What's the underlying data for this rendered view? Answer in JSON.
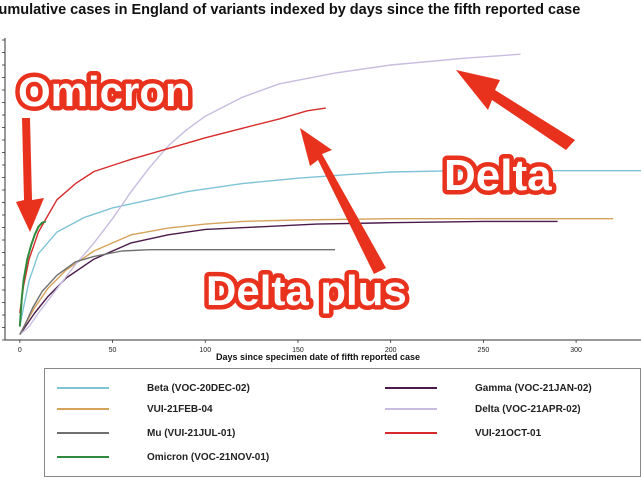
{
  "chart_data": {
    "type": "line",
    "title": "Cumulative cases in England of variants indexed by days since the fifth reported case",
    "xlabel": "Days since specimen date of fifth reported case",
    "ylabel": "",
    "xlim": [
      -8,
      335
    ],
    "x_ticks": [
      0,
      50,
      100,
      150,
      200,
      250,
      300
    ],
    "grid": false,
    "legend_position": "bottom",
    "series": [
      {
        "name": "Beta (VOC-20DEC-02)",
        "color": "#7fc3d6",
        "x": [
          0,
          2,
          5,
          10,
          20,
          35,
          50,
          70,
          90,
          120,
          150,
          180,
          200,
          230,
          260,
          300,
          335
        ],
        "y": [
          0.05,
          0.12,
          0.22,
          0.32,
          0.4,
          0.455,
          0.49,
          0.52,
          0.55,
          0.58,
          0.6,
          0.615,
          0.623,
          0.627,
          0.628,
          0.628,
          0.628
        ]
      },
      {
        "name": "Gamma (VOC-21JAN-02)",
        "color": "#4b1a4b",
        "x": [
          0,
          3,
          8,
          15,
          25,
          40,
          60,
          80,
          100,
          130,
          160,
          200,
          250,
          290
        ],
        "y": [
          0.02,
          0.05,
          0.1,
          0.16,
          0.23,
          0.3,
          0.36,
          0.39,
          0.41,
          0.42,
          0.43,
          0.435,
          0.44,
          0.44
        ]
      },
      {
        "name": "VUI-21FEB-04",
        "color": "#d5a25a",
        "x": [
          0,
          3,
          8,
          15,
          25,
          40,
          60,
          80,
          100,
          120,
          150,
          200,
          250,
          320
        ],
        "y": [
          0.02,
          0.06,
          0.12,
          0.19,
          0.26,
          0.33,
          0.39,
          0.415,
          0.43,
          0.44,
          0.445,
          0.45,
          0.45,
          0.45
        ]
      },
      {
        "name": "Delta (VOC-21APR-02)",
        "color": "#c8bce0",
        "x": [
          0,
          5,
          10,
          20,
          30,
          40,
          50,
          60,
          70,
          80,
          90,
          100,
          120,
          140,
          170,
          200,
          240,
          270
        ],
        "y": [
          0.02,
          0.05,
          0.1,
          0.19,
          0.28,
          0.36,
          0.45,
          0.55,
          0.64,
          0.72,
          0.78,
          0.83,
          0.9,
          0.95,
          0.99,
          1.02,
          1.045,
          1.06
        ]
      },
      {
        "name": "Mu (VUI-21JUL-01)",
        "color": "#707070",
        "x": [
          0,
          3,
          7,
          12,
          20,
          30,
          40,
          55,
          70,
          100,
          130,
          160,
          170
        ],
        "y": [
          0.02,
          0.06,
          0.12,
          0.18,
          0.24,
          0.29,
          0.31,
          0.33,
          0.335,
          0.335,
          0.335,
          0.335,
          0.335
        ]
      },
      {
        "name": "VUI-21OCT-01",
        "color": "#d72b2b",
        "x": [
          0,
          2,
          5,
          10,
          15,
          20,
          30,
          40,
          60,
          80,
          100,
          120,
          140,
          155,
          165
        ],
        "y": [
          0.1,
          0.2,
          0.3,
          0.4,
          0.46,
          0.52,
          0.58,
          0.625,
          0.67,
          0.71,
          0.75,
          0.785,
          0.82,
          0.85,
          0.86
        ]
      },
      {
        "name": "Omicron (VOC-21NOV-01)",
        "color": "#2e8a3c",
        "x": [
          0,
          1,
          2,
          4,
          6,
          8,
          10,
          12,
          14
        ],
        "y": [
          0.05,
          0.15,
          0.22,
          0.3,
          0.35,
          0.39,
          0.42,
          0.435,
          0.44
        ]
      }
    ],
    "annotations": [
      "Omicron",
      "Delta",
      "Delta plus"
    ]
  },
  "legend": {
    "beta": "Beta (VOC-20DEC-02)",
    "gamma": "Gamma (VOC-21JAN-02)",
    "vui_feb": "VUI-21FEB-04",
    "delta": "Delta (VOC-21APR-02)",
    "mu": "Mu (VUI-21JUL-01)",
    "vui_oct": "VUI-21OCT-01",
    "omicron": "Omicron (VOC-21NOV-01)"
  },
  "callouts": {
    "omicron": "Omicron",
    "delta": "Delta",
    "delta_plus": "Delta plus"
  },
  "colors": {
    "callout_red": "#e8321e",
    "axis": "#333333"
  }
}
